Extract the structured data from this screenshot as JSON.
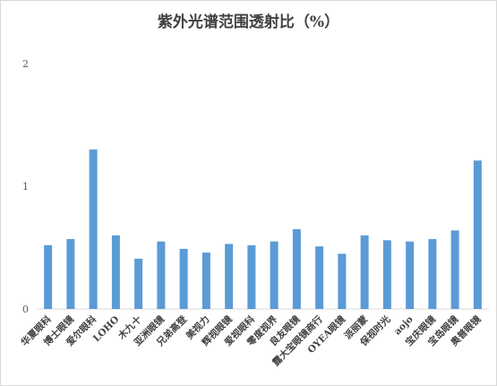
{
  "chart_data": {
    "type": "bar",
    "title": "紫外光谱范围透射比（%）",
    "xlabel": "",
    "ylabel": "",
    "ylim": [
      0,
      2
    ],
    "yticks": [
      0,
      1,
      2
    ],
    "grid": false,
    "legend": "none",
    "color": "#5B9BD5",
    "categories": [
      "华夏眼科",
      "博士眼镜",
      "爱尔眼科",
      "LOHO",
      "木九十",
      "亚洲眼镜",
      "兄弟高登",
      "美视力",
      "辉视眼镜",
      "爱视眼科",
      "零度视界",
      "良友眼镜",
      "露大宝眼镜商行",
      "OYEA眼镜",
      "派丽蒙",
      "保视时光",
      "aojo",
      "宝庆眼镜",
      "宝岛眼镜",
      "奥普眼镜"
    ],
    "values": [
      0.52,
      0.57,
      1.3,
      0.6,
      0.41,
      0.55,
      0.49,
      0.46,
      0.53,
      0.52,
      0.55,
      0.65,
      0.51,
      0.45,
      0.6,
      0.56,
      0.55,
      0.57,
      0.64,
      1.21
    ]
  }
}
